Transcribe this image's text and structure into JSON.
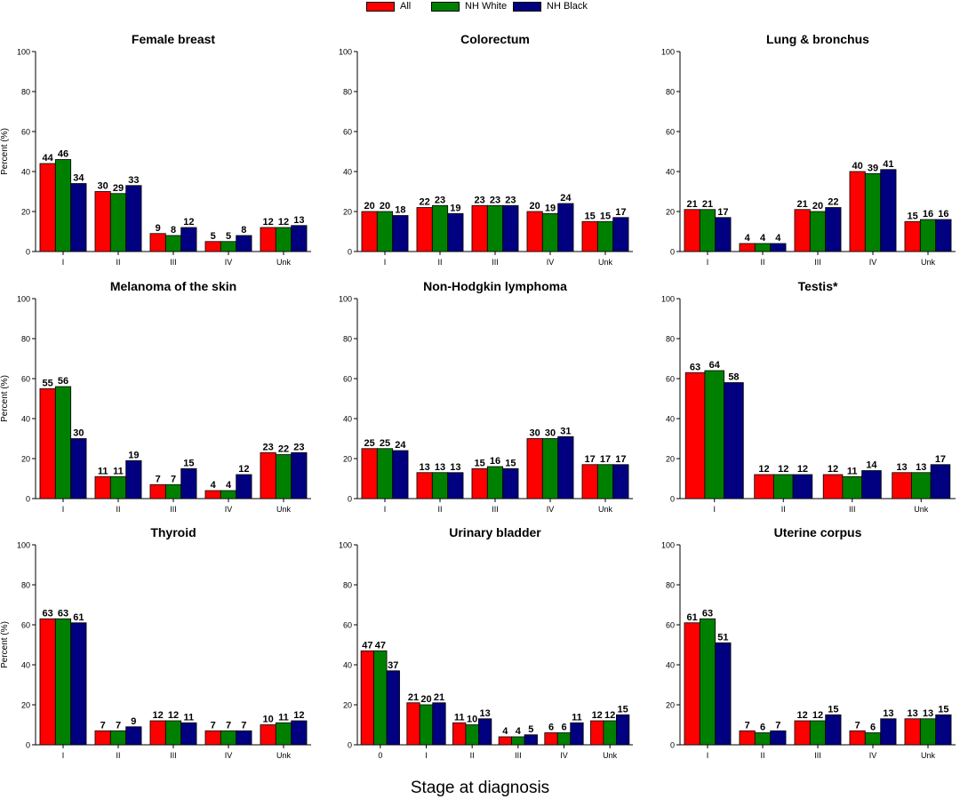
{
  "legend": [
    {
      "label": "All",
      "color": "#ff0000"
    },
    {
      "label": "NH White",
      "color": "#008000"
    },
    {
      "label": "NH Black",
      "color": "#000080"
    }
  ],
  "global_xlabel": "Stage at diagnosis",
  "chart_data": [
    {
      "type": "bar",
      "title": "Female breast",
      "ylabel": "Percent (%)",
      "ylim": [
        0,
        100
      ],
      "yticks": [
        0,
        20,
        40,
        60,
        80,
        100
      ],
      "categories": [
        "I",
        "II",
        "III",
        "IV",
        "Unk"
      ],
      "series": [
        {
          "name": "All",
          "values": [
            44,
            30,
            9,
            5,
            12
          ]
        },
        {
          "name": "NH White",
          "values": [
            46,
            29,
            8,
            5,
            12
          ]
        },
        {
          "name": "NH Black",
          "values": [
            34,
            33,
            12,
            8,
            13
          ]
        }
      ]
    },
    {
      "type": "bar",
      "title": "Colorectum",
      "ylabel": "",
      "ylim": [
        0,
        100
      ],
      "yticks": [
        0,
        20,
        40,
        60,
        80,
        100
      ],
      "categories": [
        "I",
        "II",
        "III",
        "IV",
        "Unk"
      ],
      "series": [
        {
          "name": "All",
          "values": [
            20,
            22,
            23,
            20,
            15
          ]
        },
        {
          "name": "NH White",
          "values": [
            20,
            23,
            23,
            19,
            15
          ]
        },
        {
          "name": "NH Black",
          "values": [
            18,
            19,
            23,
            24,
            17
          ]
        }
      ]
    },
    {
      "type": "bar",
      "title": "Lung & bronchus",
      "ylabel": "",
      "ylim": [
        0,
        100
      ],
      "yticks": [
        0,
        20,
        40,
        60,
        80,
        100
      ],
      "categories": [
        "I",
        "II",
        "III",
        "IV",
        "Unk"
      ],
      "series": [
        {
          "name": "All",
          "values": [
            21,
            4,
            21,
            40,
            15
          ]
        },
        {
          "name": "NH White",
          "values": [
            21,
            4,
            20,
            39,
            16
          ]
        },
        {
          "name": "NH Black",
          "values": [
            17,
            4,
            22,
            41,
            16
          ]
        }
      ]
    },
    {
      "type": "bar",
      "title": "Melanoma of the skin",
      "ylabel": "Percent (%)",
      "ylim": [
        0,
        100
      ],
      "yticks": [
        0,
        20,
        40,
        60,
        80,
        100
      ],
      "categories": [
        "I",
        "II",
        "III",
        "IV",
        "Unk"
      ],
      "series": [
        {
          "name": "All",
          "values": [
            55,
            11,
            7,
            4,
            23
          ]
        },
        {
          "name": "NH White",
          "values": [
            56,
            11,
            7,
            4,
            22
          ]
        },
        {
          "name": "NH Black",
          "values": [
            30,
            19,
            15,
            12,
            23
          ]
        }
      ]
    },
    {
      "type": "bar",
      "title": "Non-Hodgkin lymphoma",
      "ylabel": "",
      "ylim": [
        0,
        100
      ],
      "yticks": [
        0,
        20,
        40,
        60,
        80,
        100
      ],
      "categories": [
        "I",
        "II",
        "III",
        "IV",
        "Unk"
      ],
      "series": [
        {
          "name": "All",
          "values": [
            25,
            13,
            15,
            30,
            17
          ]
        },
        {
          "name": "NH White",
          "values": [
            25,
            13,
            16,
            30,
            17
          ]
        },
        {
          "name": "NH Black",
          "values": [
            24,
            13,
            15,
            31,
            17
          ]
        }
      ]
    },
    {
      "type": "bar",
      "title": "Testis*",
      "ylabel": "",
      "ylim": [
        0,
        100
      ],
      "yticks": [
        0,
        20,
        40,
        60,
        80,
        100
      ],
      "categories": [
        "I",
        "II",
        "III",
        "Unk"
      ],
      "series": [
        {
          "name": "All",
          "values": [
            63,
            12,
            12,
            13
          ]
        },
        {
          "name": "NH White",
          "values": [
            64,
            12,
            11,
            13
          ]
        },
        {
          "name": "NH Black",
          "values": [
            58,
            12,
            14,
            17
          ]
        }
      ]
    },
    {
      "type": "bar",
      "title": "Thyroid",
      "ylabel": "Percent (%)",
      "ylim": [
        0,
        100
      ],
      "yticks": [
        0,
        20,
        40,
        60,
        80,
        100
      ],
      "categories": [
        "I",
        "II",
        "III",
        "IV",
        "Unk"
      ],
      "series": [
        {
          "name": "All",
          "values": [
            63,
            7,
            12,
            7,
            10
          ]
        },
        {
          "name": "NH White",
          "values": [
            63,
            7,
            12,
            7,
            11
          ]
        },
        {
          "name": "NH Black",
          "values": [
            61,
            9,
            11,
            7,
            12
          ]
        }
      ]
    },
    {
      "type": "bar",
      "title": "Urinary bladder",
      "ylabel": "",
      "ylim": [
        0,
        100
      ],
      "yticks": [
        0,
        20,
        40,
        60,
        80,
        100
      ],
      "categories": [
        "0",
        "I",
        "II",
        "III",
        "IV",
        "Unk"
      ],
      "series": [
        {
          "name": "All",
          "values": [
            47,
            21,
            11,
            4,
            6,
            12
          ]
        },
        {
          "name": "NH White",
          "values": [
            47,
            20,
            10,
            4,
            6,
            12
          ]
        },
        {
          "name": "NH Black",
          "values": [
            37,
            21,
            13,
            5,
            11,
            15
          ]
        }
      ]
    },
    {
      "type": "bar",
      "title": "Uterine corpus",
      "ylabel": "",
      "ylim": [
        0,
        100
      ],
      "yticks": [
        0,
        20,
        40,
        60,
        80,
        100
      ],
      "categories": [
        "I",
        "II",
        "III",
        "IV",
        "Unk"
      ],
      "series": [
        {
          "name": "All",
          "values": [
            61,
            7,
            12,
            7,
            13
          ]
        },
        {
          "name": "NH White",
          "values": [
            63,
            6,
            12,
            6,
            13
          ]
        },
        {
          "name": "NH Black",
          "values": [
            51,
            7,
            15,
            13,
            15
          ]
        }
      ]
    }
  ]
}
